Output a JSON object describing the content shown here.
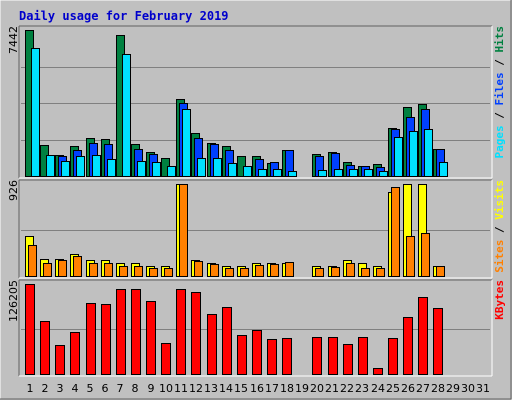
{
  "chart_data": {
    "type": "bar",
    "title": "Daily usage for February 2019",
    "categories": [
      "1",
      "2",
      "3",
      "4",
      "5",
      "6",
      "7",
      "8",
      "9",
      "10",
      "11",
      "12",
      "13",
      "14",
      "15",
      "16",
      "17",
      "18",
      "19",
      "20",
      "21",
      "22",
      "23",
      "24",
      "25",
      "26",
      "27",
      "28",
      "29",
      "30",
      "31"
    ],
    "weekend_days": [
      "2",
      "3",
      "9",
      "10",
      "16",
      "17",
      "23",
      "24",
      "30",
      "31"
    ],
    "colors": {
      "hits": "#008040",
      "files": "#0040ff",
      "pages": "#00e0ff",
      "visits": "#ffff00",
      "sites": "#ff8000",
      "kbytes": "#ff0000",
      "title": "#0000cc",
      "weekday_label": "#000000",
      "weekend_label": "#008040",
      "background": "#c0c0c0",
      "panel": "#c0c0c0"
    },
    "panels": [
      {
        "scale_label": "7442",
        "ylim": [
          0,
          7442
        ],
        "label_parts": [
          {
            "text": "Pages",
            "color": "#00e0ff"
          },
          {
            "text": " / ",
            "color": "#000000"
          },
          {
            "text": "Files",
            "color": "#0040ff"
          },
          {
            "text": " / ",
            "color": "#000000"
          },
          {
            "text": "Hits",
            "color": "#008040"
          }
        ],
        "series": [
          {
            "key": "hits",
            "values": [
              7442,
              1600,
              1050,
              1520,
              1950,
              1900,
              7180,
              1620,
              1230,
              900,
              3950,
              2180,
              1680,
              1550,
              1020,
              1020,
              650,
              1350,
              0,
              1100,
              1200,
              720,
              500,
              600,
              2430,
              3500,
              3680,
              1400,
              0,
              0,
              0
            ]
          },
          {
            "key": "files",
            "values": [
              0,
              0,
              1000,
              1330,
              1660,
              1630,
              0,
              1380,
              1100,
              0,
              3730,
              1920,
              1620,
              1350,
              0,
              860,
              720,
              1330,
              0,
              1000,
              1160,
              580,
              500,
              470,
              2400,
              3000,
              3400,
              1360,
              0,
              0,
              0
            ]
          },
          {
            "key": "pages",
            "values": [
              6500,
              1050,
              750,
              1000,
              1060,
              870,
              6200,
              750,
              700,
              500,
              3400,
              930,
              930,
              650,
              500,
              360,
              360,
              260,
              0,
              300,
              360,
              370,
              370,
              260,
              2000,
              2300,
              2400,
              700,
              0,
              0,
              0
            ]
          }
        ]
      },
      {
        "scale_label": "926",
        "ylim": [
          0,
          926
        ],
        "label_parts": [
          {
            "text": "Sites",
            "color": "#ff8000"
          },
          {
            "text": " / ",
            "color": "#000000"
          },
          {
            "text": "Visits",
            "color": "#ffff00"
          }
        ],
        "series": [
          {
            "key": "visits",
            "values": [
              400,
              175,
              175,
              225,
              165,
              165,
              135,
              135,
              100,
              100,
              926,
              165,
              135,
              100,
              100,
              135,
              135,
              135,
              0,
              100,
              100,
              165,
              135,
              100,
              850,
              926,
              926,
              100,
              0,
              0,
              0
            ]
          },
          {
            "key": "sites",
            "values": [
              310,
              135,
              165,
              200,
              135,
              135,
              100,
              100,
              85,
              85,
              926,
              150,
              120,
              85,
              85,
              110,
              120,
              145,
              0,
              80,
              90,
              135,
              80,
              85,
              900,
              400,
              430,
              100,
              0,
              0,
              0
            ]
          }
        ]
      },
      {
        "scale_label": "126205",
        "ylim": [
          0,
          126205
        ],
        "label_parts": [
          {
            "text": "KBytes",
            "color": "#ff0000"
          }
        ],
        "series": [
          {
            "key": "kbytes",
            "values": [
              126205,
              75000,
              40000,
              59000,
              99000,
              97500,
              119000,
              119000,
              103000,
              43500,
              119000,
              115000,
              84000,
              93500,
              54500,
              62000,
              48500,
              50500,
              0,
              51500,
              51500,
              42500,
              52500,
              8000,
              50500,
              79500,
              108500,
              93000,
              0,
              0,
              0
            ]
          }
        ]
      }
    ]
  }
}
